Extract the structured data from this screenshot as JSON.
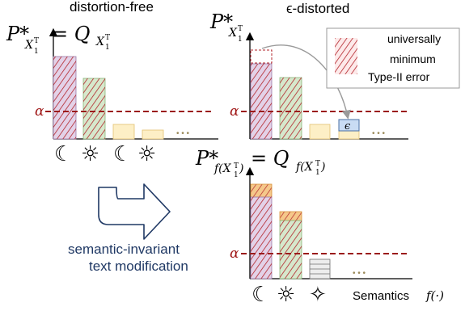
{
  "panels": {
    "top_left": {
      "title": "distortion-free",
      "equation_lhs": "P*",
      "equation_lhs_sub": "X",
      "equation_rhs": "= Q",
      "equation_rhs_sub": "X",
      "superscript_T": "T",
      "subscript_1": "1"
    },
    "top_right": {
      "title": "ϵ-distorted",
      "ylabel": "P*",
      "ylabel_sub": "X",
      "epsilon_label": "ϵ"
    },
    "bottom": {
      "equation_lhs": "P*",
      "equation_lhs_sub": "f(X",
      "equation_rhs": "= Q",
      "equation_rhs_sub": "f(X",
      "close_paren": ")",
      "xlabel_text": "Semantics ",
      "xlabel_math": "f(·)"
    }
  },
  "legend": {
    "line1": "universally",
    "line2": "minimum",
    "line3": "Type-II error"
  },
  "alpha_label": "α",
  "ellipsis": "• • •",
  "arrow_label": {
    "line1": "semantic-invariant",
    "line2": "text modification"
  },
  "symbols": {
    "moon": "☾",
    "sun": "☼",
    "star": "✧"
  },
  "colors": {
    "purple_bar": "#e3d2e8",
    "green_bar": "#d6e8cc",
    "yellow_bar": "#fdefc6",
    "blue_bar": "#c9dcf4",
    "hatch_red": "#b3242b",
    "alpha_line": "#9b1b1b",
    "arrow_blue": "#1f3864",
    "orange_fill": "#f5c88a",
    "gray_bar": "#ededed"
  }
}
